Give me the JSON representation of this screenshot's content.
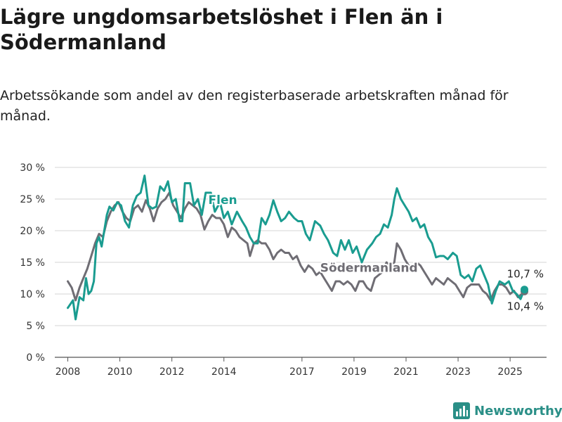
{
  "header": {
    "title": "Lägre ungdomsarbetslöshet i Flen än i Södermanland",
    "subtitle": "Arbetssökande som andel av den registerbaserade arbetskraften månad för månad."
  },
  "brand": {
    "name": "Newsworthy",
    "icon": "bar-chart-logo-icon"
  },
  "chart_data": {
    "type": "line",
    "y_ticks": [
      "0 %",
      "5 %",
      "10 %",
      "15 %",
      "20 %",
      "25 %",
      "30 %"
    ],
    "x_ticks": [
      "2008",
      "2010",
      "2012",
      "2014",
      "2017",
      "2019",
      "2021",
      "2023",
      "2025"
    ],
    "ylim": [
      0,
      30
    ],
    "xlim": [
      2007.5,
      2026.4
    ],
    "grid": true,
    "legend": "none",
    "series": [
      {
        "name": "Flen",
        "color": "#1a9c90",
        "end_label": "10,7 %",
        "points": [
          [
            2008.0,
            7.8
          ],
          [
            2008.2,
            9.0
          ],
          [
            2008.3,
            6.0
          ],
          [
            2008.45,
            9.5
          ],
          [
            2008.6,
            9.0
          ],
          [
            2008.7,
            12.5
          ],
          [
            2008.8,
            10.0
          ],
          [
            2008.9,
            10.5
          ],
          [
            2009.0,
            12.0
          ],
          [
            2009.1,
            18.0
          ],
          [
            2009.2,
            19.0
          ],
          [
            2009.3,
            17.5
          ],
          [
            2009.4,
            20.0
          ],
          [
            2009.5,
            22.5
          ],
          [
            2009.6,
            23.8
          ],
          [
            2009.75,
            23.2
          ],
          [
            2009.9,
            24.5
          ],
          [
            2010.05,
            24.0
          ],
          [
            2010.2,
            21.5
          ],
          [
            2010.35,
            20.5
          ],
          [
            2010.5,
            24.0
          ],
          [
            2010.65,
            25.5
          ],
          [
            2010.8,
            26.0
          ],
          [
            2010.95,
            28.7
          ],
          [
            2011.1,
            24.0
          ],
          [
            2011.25,
            23.5
          ],
          [
            2011.4,
            23.8
          ],
          [
            2011.55,
            27.0
          ],
          [
            2011.7,
            26.3
          ],
          [
            2011.85,
            27.8
          ],
          [
            2012.0,
            24.5
          ],
          [
            2012.15,
            25.0
          ],
          [
            2012.3,
            21.5
          ],
          [
            2012.4,
            21.5
          ],
          [
            2012.5,
            27.5
          ],
          [
            2012.7,
            27.5
          ],
          [
            2012.85,
            24.0
          ],
          [
            2013.0,
            25.0
          ],
          [
            2013.15,
            22.5
          ],
          [
            2013.3,
            26.0
          ],
          [
            2013.5,
            26.0
          ],
          [
            2013.65,
            23.0
          ],
          [
            2013.85,
            24.5
          ],
          [
            2014.0,
            22.0
          ],
          [
            2014.15,
            23.0
          ],
          [
            2014.3,
            21.0
          ],
          [
            2014.5,
            23.0
          ],
          [
            2014.7,
            21.5
          ],
          [
            2014.85,
            20.5
          ],
          [
            2015.0,
            19.0
          ],
          [
            2015.15,
            18.0
          ],
          [
            2015.3,
            18.0
          ],
          [
            2015.45,
            22.0
          ],
          [
            2015.6,
            21.0
          ],
          [
            2015.75,
            22.5
          ],
          [
            2015.9,
            24.8
          ],
          [
            2016.05,
            23.0
          ],
          [
            2016.2,
            21.5
          ],
          [
            2016.35,
            22.0
          ],
          [
            2016.5,
            23.0
          ],
          [
            2016.7,
            22.0
          ],
          [
            2016.85,
            21.5
          ],
          [
            2017.0,
            21.5
          ],
          [
            2017.15,
            19.5
          ],
          [
            2017.3,
            18.5
          ],
          [
            2017.5,
            21.5
          ],
          [
            2017.7,
            20.8
          ],
          [
            2017.85,
            19.5
          ],
          [
            2018.0,
            18.5
          ],
          [
            2018.2,
            16.5
          ],
          [
            2018.35,
            16.0
          ],
          [
            2018.5,
            18.5
          ],
          [
            2018.65,
            17.0
          ],
          [
            2018.8,
            18.5
          ],
          [
            2018.95,
            16.5
          ],
          [
            2019.1,
            17.5
          ],
          [
            2019.3,
            15.0
          ],
          [
            2019.5,
            17.0
          ],
          [
            2019.7,
            18.0
          ],
          [
            2019.85,
            19.0
          ],
          [
            2020.0,
            19.5
          ],
          [
            2020.15,
            21.0
          ],
          [
            2020.3,
            20.5
          ],
          [
            2020.45,
            22.5
          ],
          [
            2020.55,
            25.0
          ],
          [
            2020.65,
            26.7
          ],
          [
            2020.8,
            25.0
          ],
          [
            2020.95,
            24.0
          ],
          [
            2021.1,
            23.0
          ],
          [
            2021.25,
            21.5
          ],
          [
            2021.4,
            22.0
          ],
          [
            2021.55,
            20.5
          ],
          [
            2021.7,
            21.0
          ],
          [
            2021.85,
            19.0
          ],
          [
            2022.0,
            18.0
          ],
          [
            2022.15,
            15.8
          ],
          [
            2022.3,
            16.0
          ],
          [
            2022.45,
            16.0
          ],
          [
            2022.6,
            15.5
          ],
          [
            2022.8,
            16.5
          ],
          [
            2022.95,
            16.0
          ],
          [
            2023.1,
            13.0
          ],
          [
            2023.25,
            12.5
          ],
          [
            2023.4,
            13.0
          ],
          [
            2023.55,
            12.0
          ],
          [
            2023.7,
            14.0
          ],
          [
            2023.85,
            14.5
          ],
          [
            2024.0,
            13.0
          ],
          [
            2024.15,
            11.5
          ],
          [
            2024.3,
            8.5
          ],
          [
            2024.45,
            10.5
          ],
          [
            2024.6,
            12.0
          ],
          [
            2024.8,
            11.5
          ],
          [
            2024.95,
            12.0
          ],
          [
            2025.1,
            10.5
          ],
          [
            2025.25,
            10.0
          ],
          [
            2025.4,
            9.2
          ],
          [
            2025.55,
            10.7
          ]
        ]
      },
      {
        "name": "Södermanland",
        "color": "#6f6d74",
        "end_label": "10,4 %",
        "points": [
          [
            2008.0,
            12.0
          ],
          [
            2008.15,
            11.0
          ],
          [
            2008.3,
            9.0
          ],
          [
            2008.45,
            11.0
          ],
          [
            2008.6,
            12.5
          ],
          [
            2008.75,
            14.0
          ],
          [
            2008.9,
            16.0
          ],
          [
            2009.05,
            18.0
          ],
          [
            2009.2,
            19.5
          ],
          [
            2009.35,
            19.0
          ],
          [
            2009.5,
            21.5
          ],
          [
            2009.65,
            23.0
          ],
          [
            2009.8,
            24.0
          ],
          [
            2009.95,
            24.5
          ],
          [
            2010.1,
            23.0
          ],
          [
            2010.25,
            22.0
          ],
          [
            2010.4,
            21.5
          ],
          [
            2010.55,
            23.5
          ],
          [
            2010.7,
            24.0
          ],
          [
            2010.85,
            23.0
          ],
          [
            2011.0,
            24.8
          ],
          [
            2011.15,
            23.5
          ],
          [
            2011.3,
            21.5
          ],
          [
            2011.45,
            23.5
          ],
          [
            2011.6,
            24.5
          ],
          [
            2011.75,
            25.0
          ],
          [
            2011.9,
            26.0
          ],
          [
            2012.05,
            24.0
          ],
          [
            2012.2,
            23.0
          ],
          [
            2012.35,
            22.0
          ],
          [
            2012.5,
            23.5
          ],
          [
            2012.65,
            24.5
          ],
          [
            2012.8,
            24.0
          ],
          [
            2012.95,
            23.5
          ],
          [
            2013.1,
            22.5
          ],
          [
            2013.25,
            20.2
          ],
          [
            2013.4,
            21.5
          ],
          [
            2013.55,
            22.5
          ],
          [
            2013.7,
            22.0
          ],
          [
            2013.85,
            22.0
          ],
          [
            2014.0,
            21.0
          ],
          [
            2014.15,
            19.0
          ],
          [
            2014.3,
            20.5
          ],
          [
            2014.45,
            20.0
          ],
          [
            2014.6,
            19.0
          ],
          [
            2014.75,
            18.5
          ],
          [
            2014.9,
            18.0
          ],
          [
            2015.0,
            16.0
          ],
          [
            2015.15,
            18.0
          ],
          [
            2015.3,
            18.5
          ],
          [
            2015.45,
            18.0
          ],
          [
            2015.6,
            18.0
          ],
          [
            2015.75,
            17.0
          ],
          [
            2015.9,
            15.5
          ],
          [
            2016.05,
            16.5
          ],
          [
            2016.2,
            17.0
          ],
          [
            2016.35,
            16.5
          ],
          [
            2016.5,
            16.5
          ],
          [
            2016.65,
            15.5
          ],
          [
            2016.8,
            16.0
          ],
          [
            2016.95,
            14.5
          ],
          [
            2017.1,
            13.5
          ],
          [
            2017.25,
            14.5
          ],
          [
            2017.4,
            14.0
          ],
          [
            2017.55,
            13.0
          ],
          [
            2017.7,
            13.5
          ],
          [
            2017.85,
            12.5
          ],
          [
            2018.0,
            11.5
          ],
          [
            2018.15,
            10.5
          ],
          [
            2018.3,
            12.0
          ],
          [
            2018.45,
            12.0
          ],
          [
            2018.6,
            11.5
          ],
          [
            2018.75,
            12.0
          ],
          [
            2018.9,
            11.5
          ],
          [
            2019.05,
            10.5
          ],
          [
            2019.2,
            12.0
          ],
          [
            2019.35,
            12.0
          ],
          [
            2019.5,
            11.0
          ],
          [
            2019.65,
            10.5
          ],
          [
            2019.8,
            12.5
          ],
          [
            2019.95,
            13.0
          ],
          [
            2020.1,
            13.5
          ],
          [
            2020.25,
            15.0
          ],
          [
            2020.4,
            14.5
          ],
          [
            2020.55,
            15.0
          ],
          [
            2020.65,
            18.0
          ],
          [
            2020.8,
            17.0
          ],
          [
            2020.95,
            15.5
          ],
          [
            2021.1,
            14.5
          ],
          [
            2021.25,
            14.0
          ],
          [
            2021.4,
            15.0
          ],
          [
            2021.55,
            14.5
          ],
          [
            2021.7,
            13.5
          ],
          [
            2021.85,
            12.5
          ],
          [
            2022.0,
            11.5
          ],
          [
            2022.15,
            12.5
          ],
          [
            2022.3,
            12.0
          ],
          [
            2022.45,
            11.5
          ],
          [
            2022.6,
            12.5
          ],
          [
            2022.75,
            12.0
          ],
          [
            2022.9,
            11.5
          ],
          [
            2023.05,
            10.5
          ],
          [
            2023.2,
            9.5
          ],
          [
            2023.35,
            11.0
          ],
          [
            2023.5,
            11.5
          ],
          [
            2023.65,
            11.5
          ],
          [
            2023.8,
            11.5
          ],
          [
            2023.95,
            10.5
          ],
          [
            2024.1,
            10.0
          ],
          [
            2024.25,
            9.0
          ],
          [
            2024.4,
            10.5
          ],
          [
            2024.55,
            11.5
          ],
          [
            2024.7,
            11.5
          ],
          [
            2024.85,
            11.0
          ],
          [
            2025.0,
            10.0
          ],
          [
            2025.15,
            10.5
          ],
          [
            2025.3,
            9.5
          ],
          [
            2025.45,
            10.0
          ],
          [
            2025.55,
            10.4
          ]
        ]
      }
    ]
  }
}
